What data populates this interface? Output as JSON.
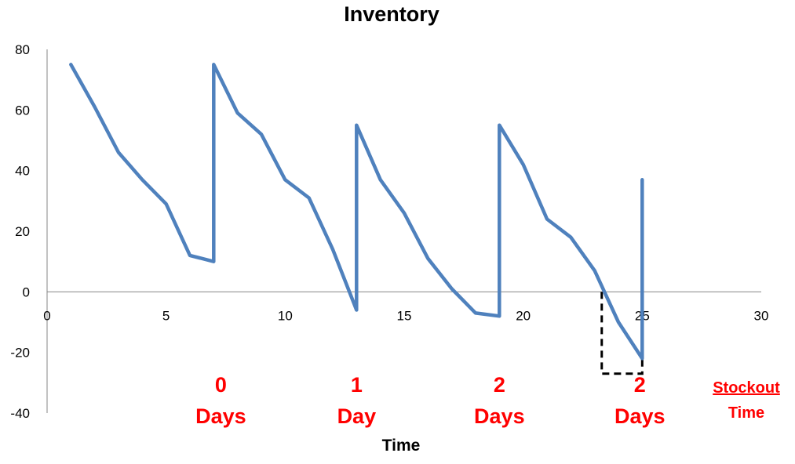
{
  "chart_data": {
    "type": "line",
    "title": "Inventory",
    "xlabel": "Time",
    "ylabel": "",
    "xlim": [
      0,
      30
    ],
    "ylim": [
      -40,
      80
    ],
    "x_ticks": [
      0,
      5,
      10,
      15,
      20,
      25,
      30
    ],
    "y_ticks": [
      -40,
      -20,
      0,
      20,
      40,
      60,
      80
    ],
    "grid": false,
    "legend": "none",
    "series": [
      {
        "color": "#4F81BD",
        "x": [
          1,
          2,
          3,
          4,
          5,
          6,
          7,
          7,
          8,
          9,
          10,
          11,
          12,
          13,
          13,
          14,
          15,
          16,
          17,
          18,
          19,
          19,
          20,
          21,
          22,
          23,
          24,
          25,
          25
        ],
        "y": [
          75,
          61,
          46,
          37,
          29,
          12,
          10,
          75,
          59,
          52,
          37,
          31,
          14,
          -6,
          55,
          37,
          26,
          11,
          1,
          -7,
          -8,
          55,
          42,
          24,
          18,
          7,
          -10,
          -22,
          37
        ]
      }
    ],
    "stockout_box": {
      "x": [
        23.3,
        25
      ],
      "y": [
        0,
        -27
      ]
    },
    "annotations": [
      {
        "number": "0",
        "unit": "Days",
        "x": 7.3
      },
      {
        "number": "1",
        "unit": "Day",
        "x": 13
      },
      {
        "number": "2",
        "unit": "Days",
        "x": 19
      },
      {
        "number": "2",
        "unit": "Days",
        "x": 24.9
      }
    ],
    "stockout_label": [
      "Stockout",
      "Time"
    ],
    "colors": {
      "line": "#4F81BD",
      "annotation": "#ff0000",
      "stockout_box": "#000000"
    }
  }
}
